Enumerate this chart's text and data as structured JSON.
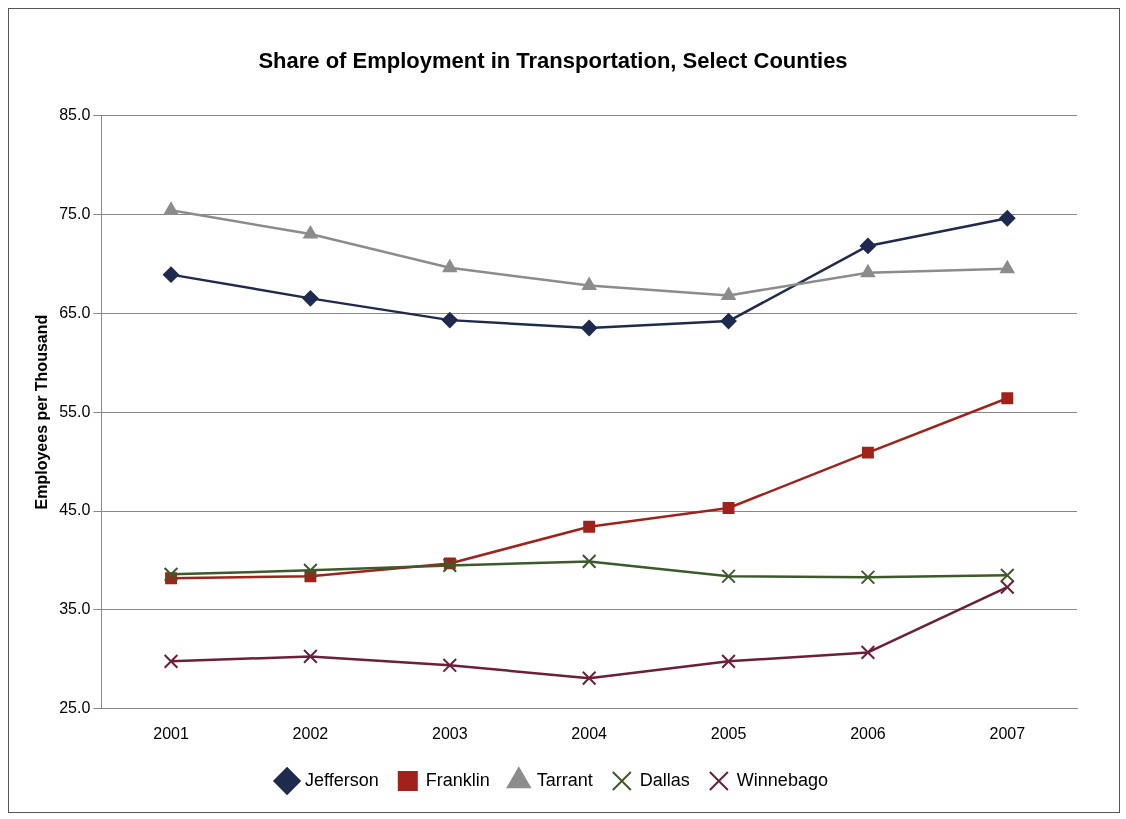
{
  "chart_data": {
    "type": "line",
    "title": "Share of Employment in Transportation, Select Counties",
    "ylabel": "Employees per Thousand",
    "categories": [
      "2001",
      "2002",
      "2003",
      "2004",
      "2005",
      "2006",
      "2007"
    ],
    "series": [
      {
        "name": "Jefferson",
        "color": "#1f2a4f",
        "marker": "diamond",
        "values": [
          68.9,
          66.5,
          64.3,
          63.5,
          64.2,
          71.8,
          74.6
        ]
      },
      {
        "name": "Franklin",
        "color": "#a0221a",
        "marker": "square",
        "values": [
          38.2,
          38.4,
          39.7,
          43.4,
          45.3,
          50.9,
          56.4
        ]
      },
      {
        "name": "Tarrant",
        "color": "#8c8c8c",
        "marker": "triangle",
        "values": [
          75.4,
          73.0,
          69.6,
          67.8,
          66.8,
          69.1,
          69.5
        ]
      },
      {
        "name": "Dallas",
        "color": "#3d5a2a",
        "marker": "cross",
        "values": [
          38.6,
          39.0,
          39.5,
          39.9,
          38.4,
          38.3,
          38.5
        ]
      },
      {
        "name": "Winnebago",
        "color": "#6b1f3a",
        "marker": "cross",
        "values": [
          29.8,
          30.3,
          29.4,
          28.1,
          29.8,
          30.7,
          37.3
        ]
      }
    ],
    "ylim": [
      25,
      85
    ],
    "yticks": [
      {
        "value": 25,
        "label": "25.0"
      },
      {
        "value": 35,
        "label": "35.0"
      },
      {
        "value": 45,
        "label": "45.0"
      },
      {
        "value": 55,
        "label": "55.0"
      },
      {
        "value": 65,
        "label": "65.0"
      },
      {
        "value": 75,
        "label": "75.0"
      },
      {
        "value": 85,
        "label": "85.0"
      }
    ],
    "grid": "y",
    "legend": "bottom",
    "line_style": "solid"
  }
}
